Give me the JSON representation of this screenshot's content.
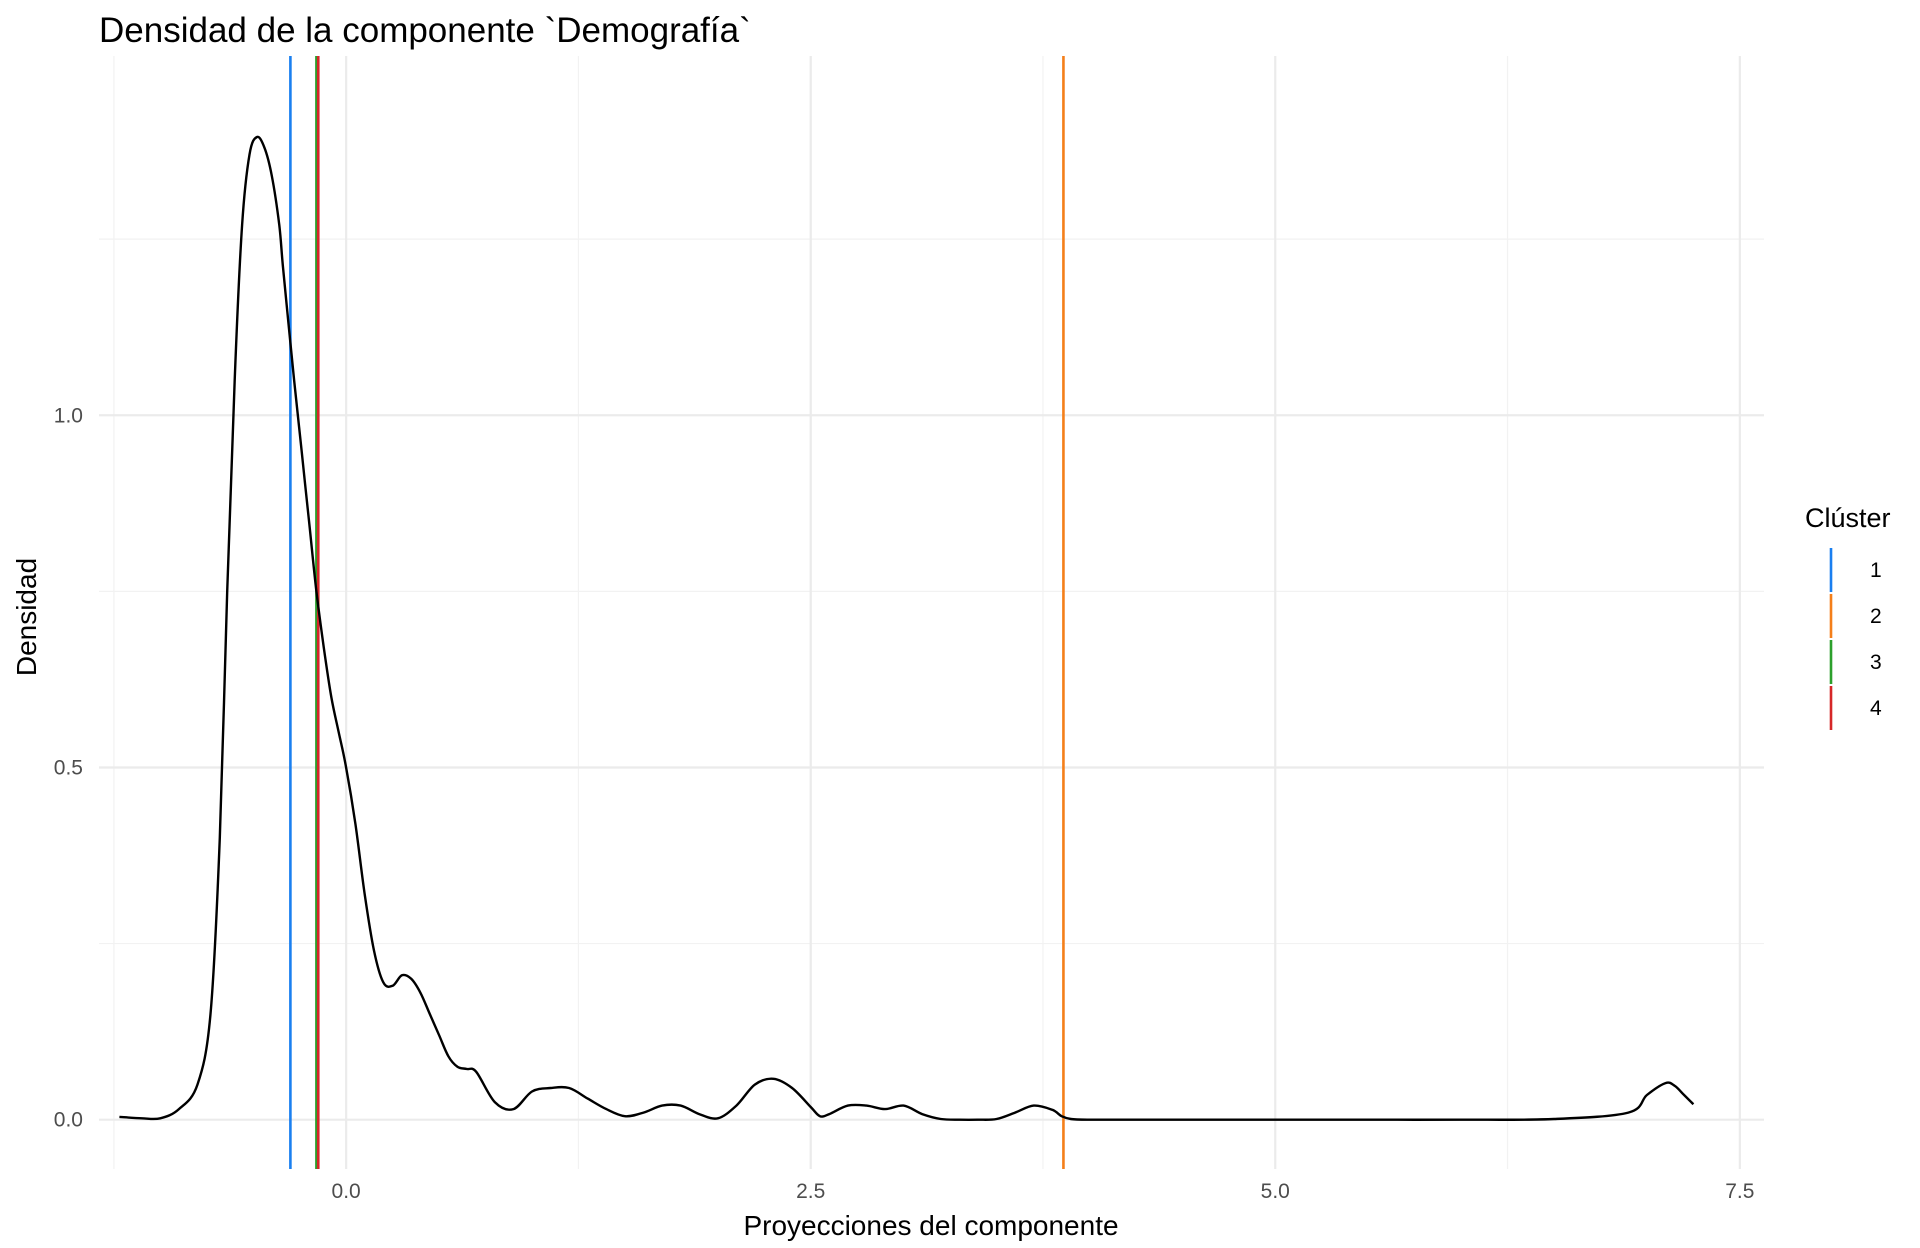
{
  "chart_data": {
    "type": "line",
    "title": "Densidad de la componente `Demografía`",
    "xlabel": "Proyecciones del componente",
    "ylabel": "Densidad",
    "xlim": [
      -1.33,
      7.63
    ],
    "ylim": [
      -0.07,
      1.51
    ],
    "x_ticks": [
      0.0,
      2.5,
      5.0,
      7.5
    ],
    "x_tick_labels": [
      "0.0",
      "2.5",
      "5.0",
      "7.5"
    ],
    "y_ticks": [
      0.0,
      0.5,
      1.0
    ],
    "y_tick_labels": [
      "0.0",
      "0.5",
      "1.0"
    ],
    "grid": true,
    "legend": {
      "title": "Clúster",
      "position": "right"
    },
    "series": [
      {
        "type": "density",
        "color": "#000000",
        "x": [
          -1.22,
          -1.1,
          -1.0,
          -0.9,
          -0.8,
          -0.73,
          -0.68,
          -0.64,
          -0.6,
          -0.56,
          -0.52,
          -0.48,
          -0.44,
          -0.4,
          -0.36,
          -0.34,
          -0.31,
          -0.28,
          -0.24,
          -0.2,
          -0.16,
          -0.12,
          -0.08,
          -0.04,
          0.0,
          0.05,
          0.1,
          0.15,
          0.2,
          0.25,
          0.3,
          0.35,
          0.4,
          0.45,
          0.5,
          0.55,
          0.6,
          0.65,
          0.7,
          0.8,
          0.9,
          1.0,
          1.1,
          1.2,
          1.3,
          1.4,
          1.5,
          1.6,
          1.7,
          1.8,
          1.9,
          2.0,
          2.1,
          2.2,
          2.3,
          2.4,
          2.5,
          2.55,
          2.6,
          2.7,
          2.8,
          2.9,
          3.0,
          3.1,
          3.2,
          3.3,
          3.4,
          3.5,
          3.6,
          3.7,
          3.8,
          3.85,
          3.9,
          4.0,
          4.2,
          4.5,
          5.0,
          5.5,
          6.0,
          6.5,
          6.9,
          7.0,
          7.1,
          7.15,
          7.2,
          7.25
        ],
        "y": [
          0.004,
          0.002,
          0.002,
          0.015,
          0.05,
          0.15,
          0.4,
          0.75,
          1.05,
          1.27,
          1.37,
          1.395,
          1.38,
          1.34,
          1.27,
          1.21,
          1.13,
          1.05,
          0.95,
          0.85,
          0.75,
          0.67,
          0.6,
          0.55,
          0.5,
          0.42,
          0.32,
          0.24,
          0.195,
          0.19,
          0.205,
          0.2,
          0.18,
          0.15,
          0.12,
          0.09,
          0.075,
          0.072,
          0.068,
          0.025,
          0.015,
          0.04,
          0.045,
          0.045,
          0.03,
          0.015,
          0.005,
          0.01,
          0.02,
          0.02,
          0.008,
          0.002,
          0.02,
          0.05,
          0.058,
          0.045,
          0.018,
          0.005,
          0.008,
          0.02,
          0.02,
          0.015,
          0.02,
          0.008,
          0.001,
          0.0,
          0.0,
          0.001,
          0.01,
          0.02,
          0.014,
          0.005,
          0.001,
          0.0,
          0.0,
          0.0,
          0.0,
          0.0,
          0.0,
          0.001,
          0.01,
          0.035,
          0.052,
          0.048,
          0.035,
          0.022
        ]
      }
    ],
    "vlines": [
      {
        "cluster": "1",
        "x": -0.3,
        "color": "#1a7ff0"
      },
      {
        "cluster": "2",
        "x": 3.86,
        "color": "#f47f1a"
      },
      {
        "cluster": "3",
        "x": -0.16,
        "color": "#2ca02c"
      },
      {
        "cluster": "4",
        "x": -0.15,
        "color": "#d62728"
      }
    ]
  }
}
